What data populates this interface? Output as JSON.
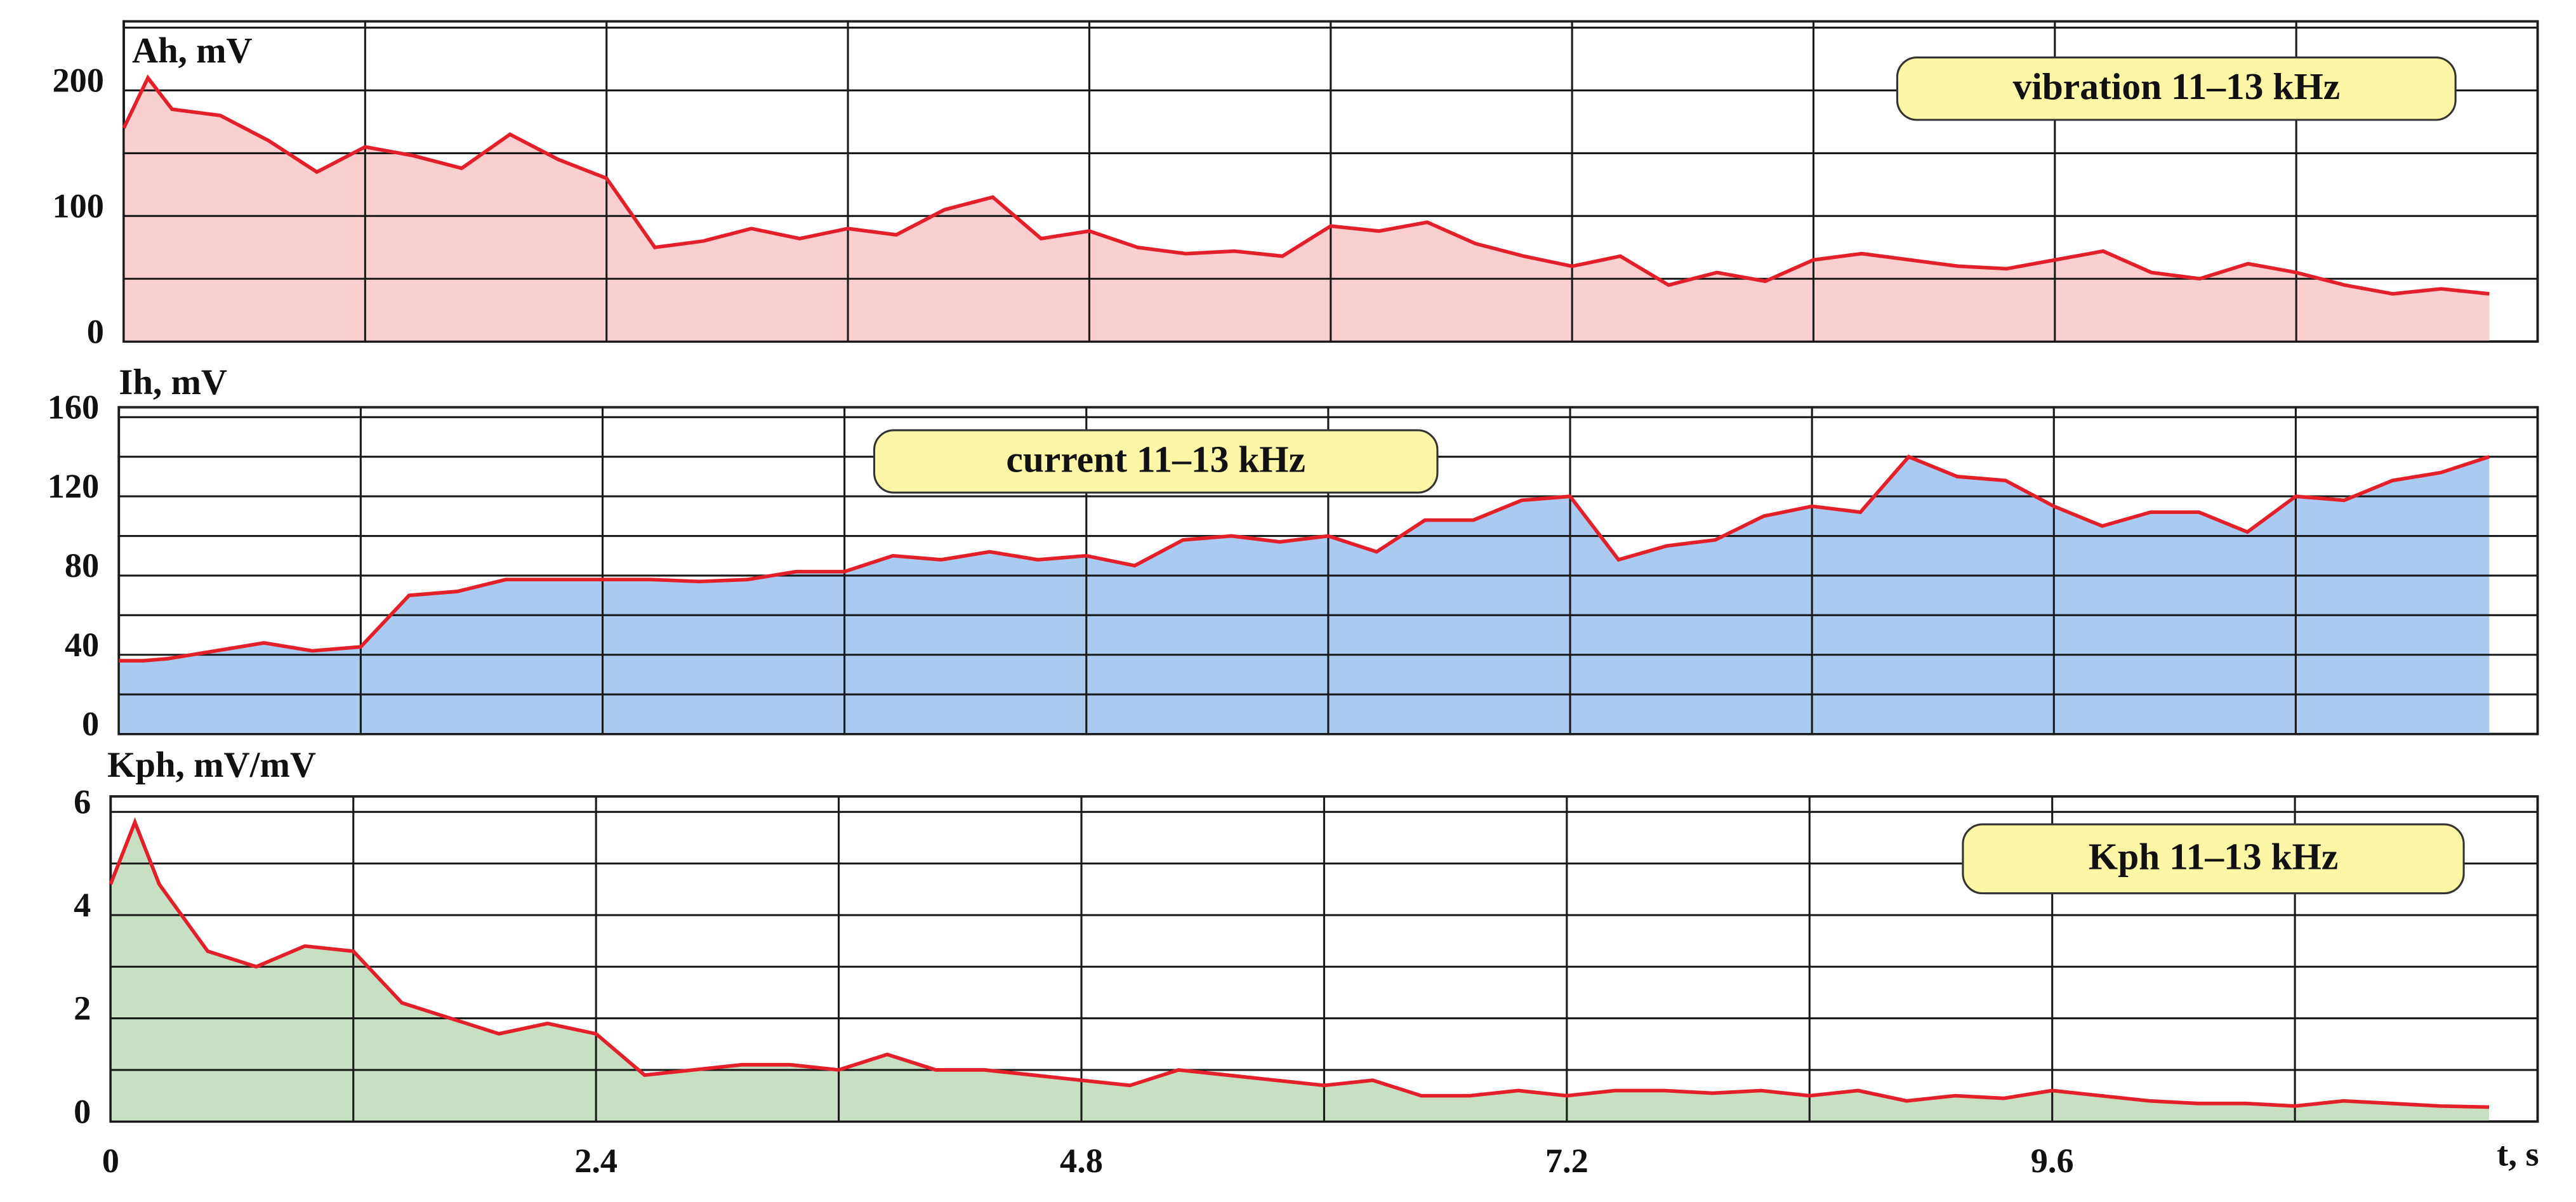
{
  "chart_data": [
    {
      "type": "area",
      "ylabel": "Ah, mV",
      "annotation": "vibration 11–13 kHz",
      "x": [
        0,
        0.12,
        0.24,
        0.48,
        0.72,
        0.96,
        1.2,
        1.44,
        1.68,
        1.92,
        2.16,
        2.4,
        2.64,
        2.88,
        3.12,
        3.36,
        3.6,
        3.84,
        4.08,
        4.32,
        4.56,
        4.8,
        5.04,
        5.28,
        5.52,
        5.76,
        6.0,
        6.24,
        6.48,
        6.72,
        6.96,
        7.2,
        7.44,
        7.68,
        7.92,
        8.16,
        8.4,
        8.64,
        8.88,
        9.12,
        9.36,
        9.6,
        9.84,
        10.08,
        10.32,
        10.56,
        10.8,
        11.04,
        11.28,
        11.52,
        11.76
      ],
      "values": [
        170,
        210,
        185,
        180,
        160,
        135,
        155,
        148,
        138,
        165,
        145,
        130,
        75,
        80,
        90,
        82,
        90,
        85,
        105,
        115,
        82,
        88,
        75,
        70,
        72,
        68,
        92,
        88,
        95,
        78,
        68,
        60,
        68,
        45,
        55,
        48,
        65,
        70,
        65,
        60,
        58,
        65,
        72,
        55,
        50,
        62,
        55,
        45,
        38,
        42,
        38
      ],
      "color": "#f9cfcf",
      "line_color": "#e3202a",
      "xlim": [
        0,
        12
      ],
      "ylim": [
        0,
        255
      ],
      "yticks": [
        0,
        100,
        200
      ],
      "ygrid": [
        0,
        50,
        100,
        150,
        200,
        250
      ],
      "xgrid": [
        0,
        1.2,
        2.4,
        3.6,
        4.8,
        6,
        7.2,
        8.4,
        9.6,
        10.8,
        12
      ]
    },
    {
      "type": "area",
      "ylabel": "Ih, mV",
      "annotation": "current  11–13 kHz",
      "x": [
        0,
        0.12,
        0.24,
        0.48,
        0.72,
        0.96,
        1.2,
        1.44,
        1.68,
        1.92,
        2.16,
        2.4,
        2.64,
        2.88,
        3.12,
        3.36,
        3.6,
        3.84,
        4.08,
        4.32,
        4.56,
        4.8,
        5.04,
        5.28,
        5.52,
        5.76,
        6.0,
        6.24,
        6.48,
        6.72,
        6.96,
        7.2,
        7.44,
        7.68,
        7.92,
        8.16,
        8.4,
        8.64,
        8.88,
        9.12,
        9.36,
        9.6,
        9.84,
        10.08,
        10.32,
        10.56,
        10.8,
        11.04,
        11.28,
        11.52,
        11.76
      ],
      "values": [
        37,
        37,
        38,
        42,
        46,
        42,
        44,
        70,
        72,
        78,
        78,
        78,
        78,
        77,
        78,
        82,
        82,
        90,
        88,
        92,
        88,
        90,
        85,
        98,
        100,
        97,
        100,
        92,
        108,
        108,
        118,
        120,
        88,
        95,
        98,
        110,
        115,
        112,
        140,
        130,
        128,
        115,
        105,
        112,
        112,
        102,
        120,
        118,
        128,
        132,
        140
      ],
      "color": "#aacbef",
      "line_color": "#e3202a",
      "xlim": [
        0,
        12
      ],
      "ylim": [
        0,
        165
      ],
      "yticks": [
        0,
        40,
        80,
        120,
        160
      ],
      "ygrid": [
        0,
        20,
        40,
        60,
        80,
        100,
        120,
        140,
        160
      ],
      "xgrid": [
        0,
        1.2,
        2.4,
        3.6,
        4.8,
        6,
        7.2,
        8.4,
        9.6,
        10.8,
        12
      ]
    },
    {
      "type": "area",
      "ylabel": "Kph, mV/mV",
      "annotation": "Kph 11–13 kHz",
      "x": [
        0,
        0.12,
        0.24,
        0.48,
        0.72,
        0.96,
        1.2,
        1.44,
        1.68,
        1.92,
        2.16,
        2.4,
        2.64,
        2.88,
        3.12,
        3.36,
        3.6,
        3.84,
        4.08,
        4.32,
        4.56,
        4.8,
        5.04,
        5.28,
        5.52,
        5.76,
        6.0,
        6.24,
        6.48,
        6.72,
        6.96,
        7.2,
        7.44,
        7.68,
        7.92,
        8.16,
        8.4,
        8.64,
        8.88,
        9.12,
        9.36,
        9.6,
        9.84,
        10.08,
        10.32,
        10.56,
        10.8,
        11.04,
        11.28,
        11.52,
        11.76
      ],
      "values": [
        4.6,
        5.8,
        4.6,
        3.3,
        3.0,
        3.4,
        3.3,
        2.3,
        2.0,
        1.7,
        1.9,
        1.7,
        0.9,
        1.0,
        1.1,
        1.1,
        1.0,
        1.3,
        1.0,
        1.0,
        0.9,
        0.8,
        0.7,
        1.0,
        0.9,
        0.8,
        0.7,
        0.8,
        0.5,
        0.5,
        0.6,
        0.5,
        0.6,
        0.6,
        0.55,
        0.6,
        0.5,
        0.6,
        0.4,
        0.5,
        0.45,
        0.6,
        0.5,
        0.4,
        0.35,
        0.35,
        0.3,
        0.4,
        0.35,
        0.3,
        0.28
      ],
      "color": "#c7dfc3",
      "line_color": "#e3202a",
      "xlim": [
        0,
        12
      ],
      "ylim": [
        0,
        6.3
      ],
      "yticks": [
        0,
        2,
        4,
        6
      ],
      "ygrid": [
        0,
        1,
        2,
        3,
        4,
        5,
        6
      ],
      "xgrid": [
        0,
        1.2,
        2.4,
        3.6,
        4.8,
        6,
        7.2,
        8.4,
        9.6,
        10.8,
        12
      ],
      "xticks": [
        0,
        2.4,
        4.8,
        7.2,
        9.6
      ],
      "xlabel": "t, s"
    }
  ]
}
